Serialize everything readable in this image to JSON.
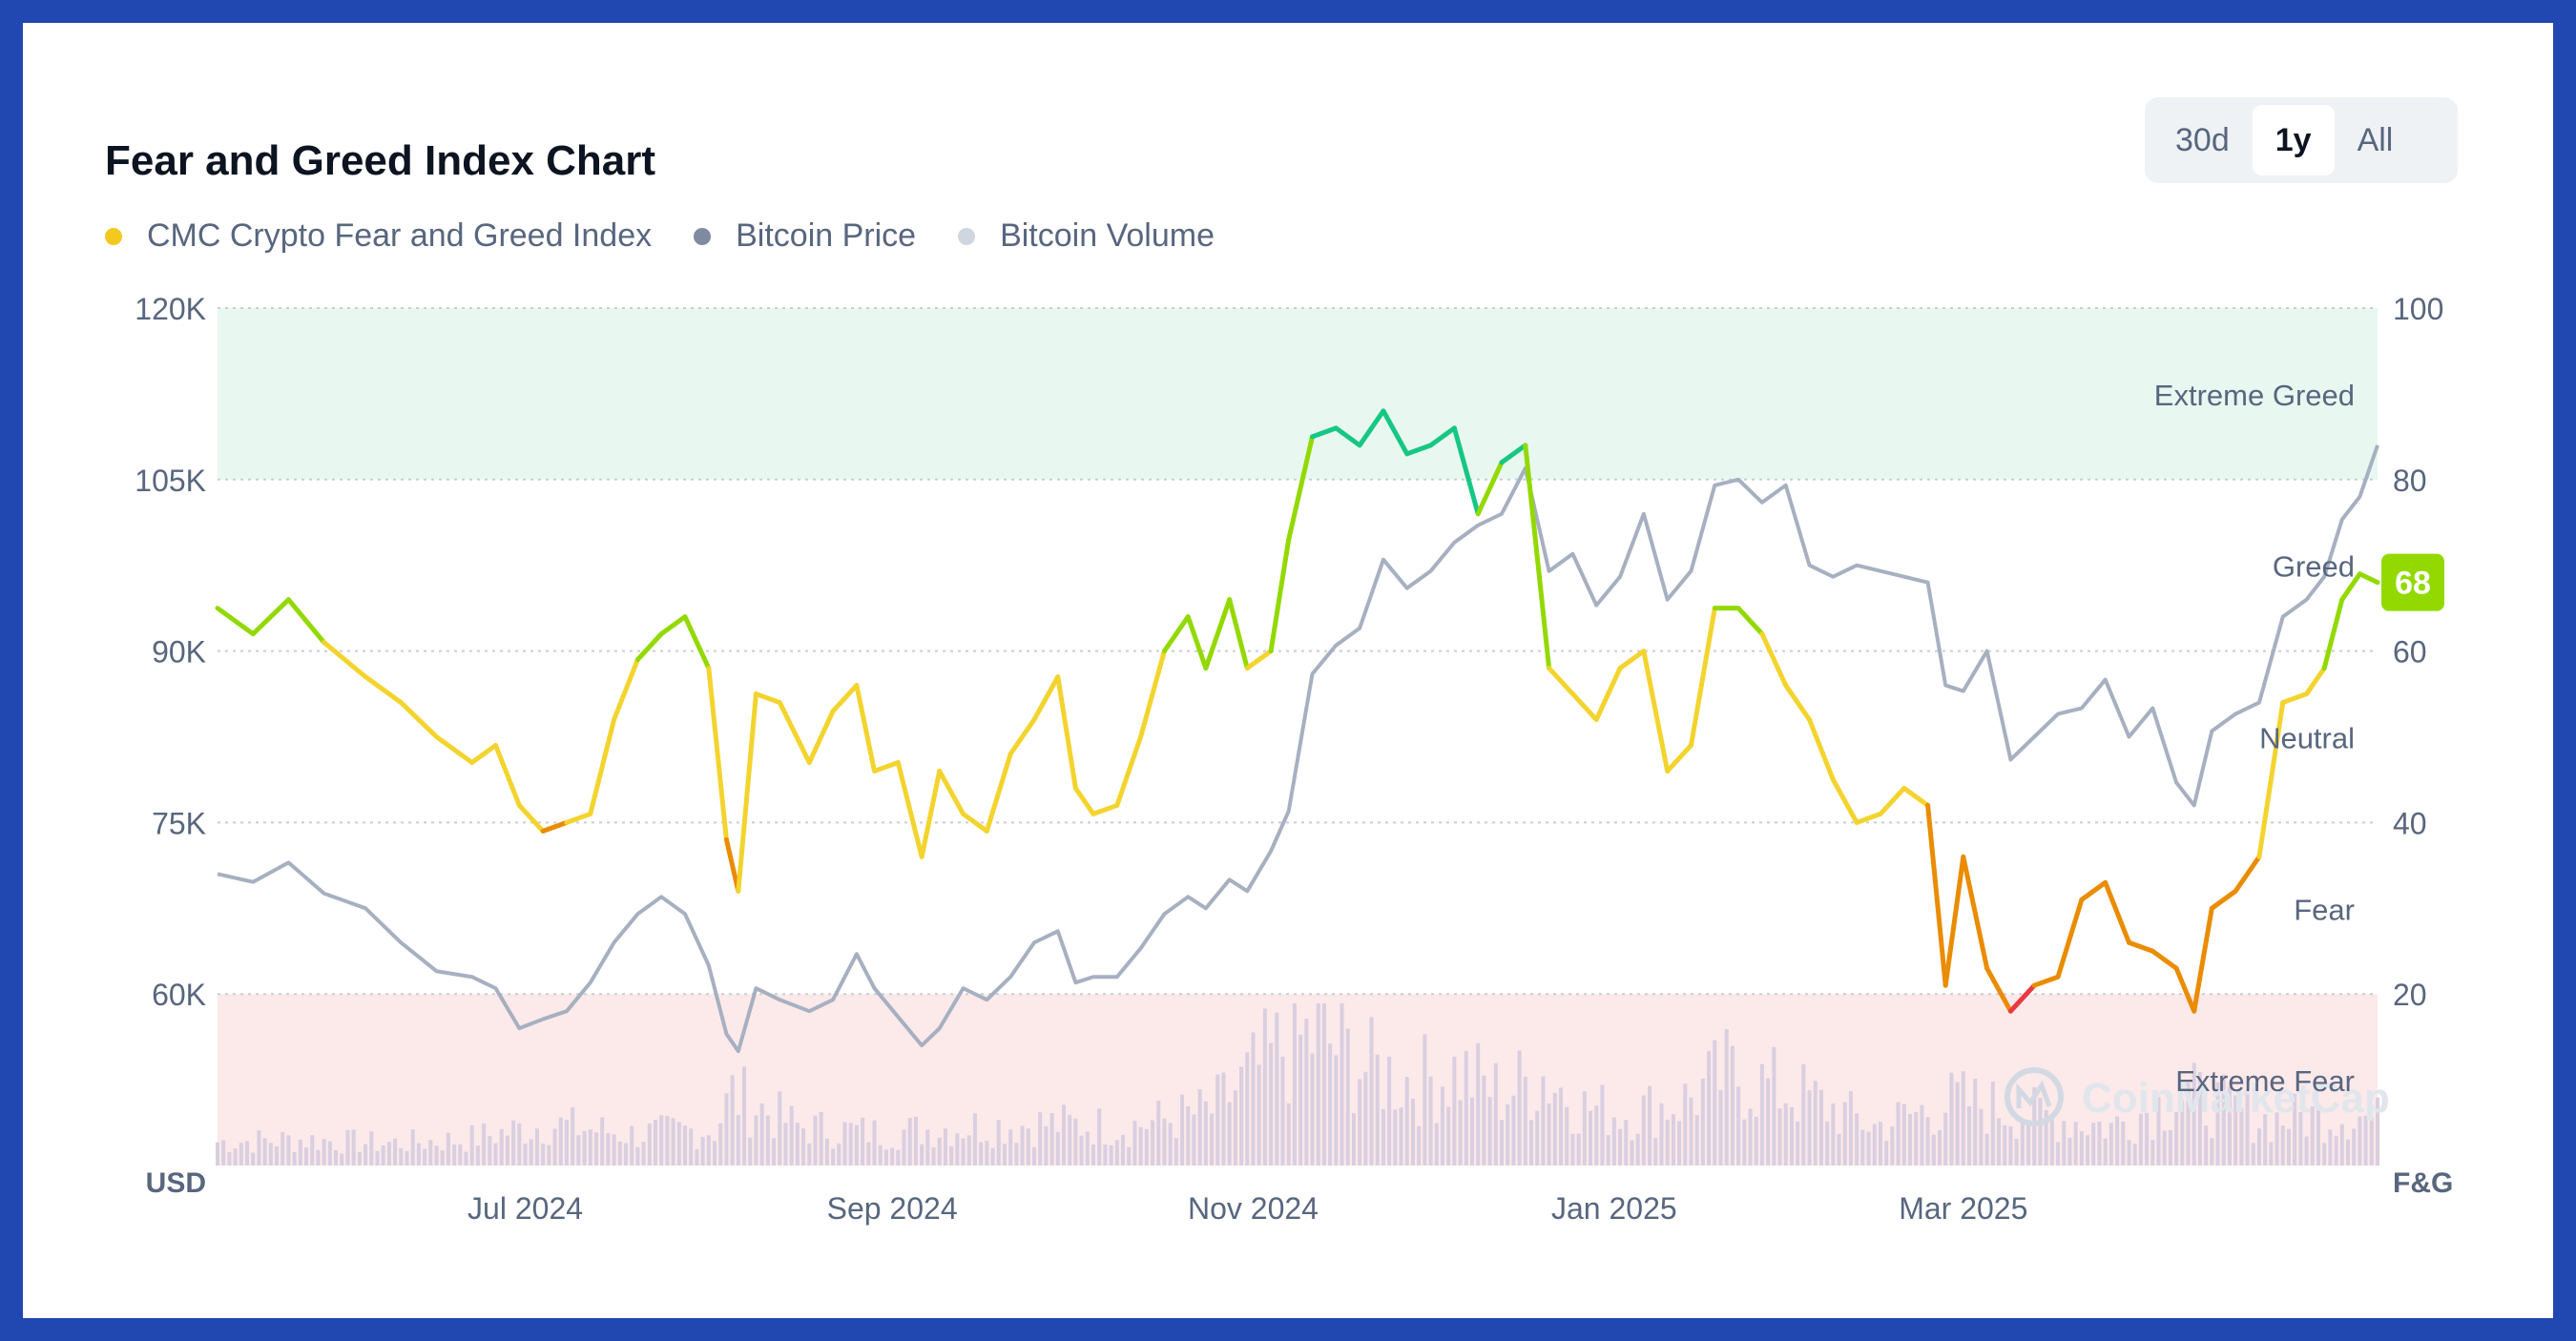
{
  "header": {
    "title": "Fear and Greed Index Chart"
  },
  "legend": [
    {
      "label": "CMC Crypto Fear and Greed Index",
      "color": "#f4c91f"
    },
    {
      "label": "Bitcoin Price",
      "color": "#7e8aa0"
    },
    {
      "label": "Bitcoin Volume",
      "color": "#cfd6e0"
    }
  ],
  "range_selector": {
    "options": [
      "30d",
      "1y",
      "All"
    ],
    "active": "1y"
  },
  "watermark": "CoinMarketCap",
  "chart_data": {
    "type": "line",
    "x_range": [
      "2024-05-10",
      "2025-05-10"
    ],
    "x_ticks": [
      {
        "label": "Jul 2024",
        "date": "2024-07-01"
      },
      {
        "label": "Sep 2024",
        "date": "2024-09-01"
      },
      {
        "label": "Nov 2024",
        "date": "2024-11-01"
      },
      {
        "label": "Jan 2025",
        "date": "2025-01-01"
      },
      {
        "label": "Mar 2025",
        "date": "2025-03-01"
      }
    ],
    "y_left": {
      "label": "USD",
      "min": 45000,
      "max": 120000,
      "ticks": [
        "60K",
        "75K",
        "90K",
        "105K",
        "120K"
      ],
      "tick_values": [
        60000,
        75000,
        90000,
        105000,
        120000
      ]
    },
    "y_right": {
      "label": "F&G",
      "min": 0,
      "max": 100,
      "ticks": [
        20,
        40,
        60,
        80,
        100
      ]
    },
    "zones": [
      {
        "label": "Extreme Greed",
        "from": 80,
        "to": 100,
        "color": "#e8f8f0"
      },
      {
        "label": "Greed",
        "from": 60,
        "to": 80,
        "color": ""
      },
      {
        "label": "Neutral",
        "from": 40,
        "to": 60,
        "color": ""
      },
      {
        "label": "Fear",
        "from": 20,
        "to": 40,
        "color": ""
      },
      {
        "label": "Extreme Fear",
        "from": 0,
        "to": 20,
        "color": "#fce9ea"
      }
    ],
    "fng_color_scale": [
      {
        "min": 0,
        "max": 20,
        "color": "#ea3943"
      },
      {
        "min": 20,
        "max": 40,
        "color": "#ea8c00"
      },
      {
        "min": 40,
        "max": 60,
        "color": "#f3d42f"
      },
      {
        "min": 60,
        "max": 80,
        "color": "#93d900"
      },
      {
        "min": 80,
        "max": 100,
        "color": "#16c784"
      }
    ],
    "current_value": {
      "value": 68,
      "label": "68",
      "color": "#93d900"
    },
    "series": [
      {
        "name": "CMC Crypto Fear and Greed Index",
        "axis": "right",
        "points": [
          [
            "2024-05-10",
            65
          ],
          [
            "2024-05-16",
            62
          ],
          [
            "2024-05-22",
            66
          ],
          [
            "2024-05-28",
            61
          ],
          [
            "2024-06-04",
            57
          ],
          [
            "2024-06-10",
            54
          ],
          [
            "2024-06-16",
            50
          ],
          [
            "2024-06-22",
            47
          ],
          [
            "2024-06-26",
            49
          ],
          [
            "2024-06-30",
            42
          ],
          [
            "2024-07-04",
            39
          ],
          [
            "2024-07-08",
            40
          ],
          [
            "2024-07-12",
            41
          ],
          [
            "2024-07-16",
            52
          ],
          [
            "2024-07-20",
            59
          ],
          [
            "2024-07-24",
            62
          ],
          [
            "2024-07-28",
            64
          ],
          [
            "2024-08-01",
            58
          ],
          [
            "2024-08-04",
            38
          ],
          [
            "2024-08-06",
            32
          ],
          [
            "2024-08-09",
            55
          ],
          [
            "2024-08-13",
            54
          ],
          [
            "2024-08-18",
            47
          ],
          [
            "2024-08-22",
            53
          ],
          [
            "2024-08-26",
            56
          ],
          [
            "2024-08-29",
            46
          ],
          [
            "2024-09-02",
            47
          ],
          [
            "2024-09-06",
            36
          ],
          [
            "2024-09-09",
            46
          ],
          [
            "2024-09-13",
            41
          ],
          [
            "2024-09-17",
            39
          ],
          [
            "2024-09-21",
            48
          ],
          [
            "2024-09-25",
            52
          ],
          [
            "2024-09-29",
            57
          ],
          [
            "2024-10-02",
            44
          ],
          [
            "2024-10-05",
            41
          ],
          [
            "2024-10-09",
            42
          ],
          [
            "2024-10-13",
            50
          ],
          [
            "2024-10-17",
            60
          ],
          [
            "2024-10-21",
            64
          ],
          [
            "2024-10-24",
            58
          ],
          [
            "2024-10-28",
            66
          ],
          [
            "2024-10-31",
            58
          ],
          [
            "2024-11-04",
            60
          ],
          [
            "2024-11-07",
            73
          ],
          [
            "2024-11-11",
            85
          ],
          [
            "2024-11-15",
            86
          ],
          [
            "2024-11-19",
            84
          ],
          [
            "2024-11-23",
            88
          ],
          [
            "2024-11-27",
            83
          ],
          [
            "2024-12-01",
            84
          ],
          [
            "2024-12-05",
            86
          ],
          [
            "2024-12-09",
            76
          ],
          [
            "2024-12-13",
            82
          ],
          [
            "2024-12-17",
            84
          ],
          [
            "2024-12-21",
            58
          ],
          [
            "2024-12-25",
            55
          ],
          [
            "2024-12-29",
            52
          ],
          [
            "2025-01-02",
            58
          ],
          [
            "2025-01-06",
            60
          ],
          [
            "2025-01-10",
            46
          ],
          [
            "2025-01-14",
            49
          ],
          [
            "2025-01-18",
            65
          ],
          [
            "2025-01-22",
            65
          ],
          [
            "2025-01-26",
            62
          ],
          [
            "2025-01-30",
            56
          ],
          [
            "2025-02-03",
            52
          ],
          [
            "2025-02-07",
            45
          ],
          [
            "2025-02-11",
            40
          ],
          [
            "2025-02-15",
            41
          ],
          [
            "2025-02-19",
            44
          ],
          [
            "2025-02-23",
            42
          ],
          [
            "2025-02-26",
            21
          ],
          [
            "2025-03-01",
            36
          ],
          [
            "2025-03-05",
            23
          ],
          [
            "2025-03-09",
            18
          ],
          [
            "2025-03-13",
            21
          ],
          [
            "2025-03-17",
            22
          ],
          [
            "2025-03-21",
            31
          ],
          [
            "2025-03-25",
            33
          ],
          [
            "2025-03-29",
            26
          ],
          [
            "2025-04-02",
            25
          ],
          [
            "2025-04-06",
            23
          ],
          [
            "2025-04-09",
            18
          ],
          [
            "2025-04-12",
            30
          ],
          [
            "2025-04-16",
            32
          ],
          [
            "2025-04-20",
            36
          ],
          [
            "2025-04-24",
            54
          ],
          [
            "2025-04-28",
            55
          ],
          [
            "2025-05-01",
            58
          ],
          [
            "2025-05-04",
            66
          ],
          [
            "2025-05-07",
            69
          ],
          [
            "2025-05-10",
            68
          ]
        ]
      },
      {
        "name": "Bitcoin Price",
        "axis": "left",
        "points": [
          [
            "2024-05-10",
            70500
          ],
          [
            "2024-05-16",
            69800
          ],
          [
            "2024-05-22",
            71500
          ],
          [
            "2024-05-28",
            68800
          ],
          [
            "2024-06-04",
            67500
          ],
          [
            "2024-06-10",
            64500
          ],
          [
            "2024-06-16",
            62000
          ],
          [
            "2024-06-22",
            61500
          ],
          [
            "2024-06-26",
            60500
          ],
          [
            "2024-06-30",
            57000
          ],
          [
            "2024-07-04",
            57800
          ],
          [
            "2024-07-08",
            58500
          ],
          [
            "2024-07-12",
            61000
          ],
          [
            "2024-07-16",
            64500
          ],
          [
            "2024-07-20",
            67000
          ],
          [
            "2024-07-24",
            68500
          ],
          [
            "2024-07-28",
            67000
          ],
          [
            "2024-08-01",
            62500
          ],
          [
            "2024-08-04",
            56500
          ],
          [
            "2024-08-06",
            55000
          ],
          [
            "2024-08-09",
            60500
          ],
          [
            "2024-08-13",
            59500
          ],
          [
            "2024-08-18",
            58500
          ],
          [
            "2024-08-22",
            59500
          ],
          [
            "2024-08-26",
            63500
          ],
          [
            "2024-08-29",
            60500
          ],
          [
            "2024-09-02",
            58000
          ],
          [
            "2024-09-06",
            55500
          ],
          [
            "2024-09-09",
            57000
          ],
          [
            "2024-09-13",
            60500
          ],
          [
            "2024-09-17",
            59500
          ],
          [
            "2024-09-21",
            61500
          ],
          [
            "2024-09-25",
            64500
          ],
          [
            "2024-09-29",
            65500
          ],
          [
            "2024-10-02",
            61000
          ],
          [
            "2024-10-05",
            61500
          ],
          [
            "2024-10-09",
            61500
          ],
          [
            "2024-10-13",
            64000
          ],
          [
            "2024-10-17",
            67000
          ],
          [
            "2024-10-21",
            68500
          ],
          [
            "2024-10-24",
            67500
          ],
          [
            "2024-10-28",
            70000
          ],
          [
            "2024-10-31",
            69000
          ],
          [
            "2024-11-04",
            72500
          ],
          [
            "2024-11-07",
            76000
          ],
          [
            "2024-11-11",
            88000
          ],
          [
            "2024-11-15",
            90500
          ],
          [
            "2024-11-19",
            92000
          ],
          [
            "2024-11-23",
            98000
          ],
          [
            "2024-11-27",
            95500
          ],
          [
            "2024-12-01",
            97000
          ],
          [
            "2024-12-05",
            99500
          ],
          [
            "2024-12-09",
            101000
          ],
          [
            "2024-12-13",
            102000
          ],
          [
            "2024-12-17",
            106000
          ],
          [
            "2024-12-21",
            97000
          ],
          [
            "2024-12-25",
            98500
          ],
          [
            "2024-12-29",
            94000
          ],
          [
            "2025-01-02",
            96500
          ],
          [
            "2025-01-06",
            102000
          ],
          [
            "2025-01-10",
            94500
          ],
          [
            "2025-01-14",
            97000
          ],
          [
            "2025-01-18",
            104500
          ],
          [
            "2025-01-22",
            105000
          ],
          [
            "2025-01-26",
            103000
          ],
          [
            "2025-01-30",
            104500
          ],
          [
            "2025-02-03",
            97500
          ],
          [
            "2025-02-07",
            96500
          ],
          [
            "2025-02-11",
            97500
          ],
          [
            "2025-02-15",
            97000
          ],
          [
            "2025-02-19",
            96500
          ],
          [
            "2025-02-23",
            96000
          ],
          [
            "2025-02-26",
            87000
          ],
          [
            "2025-03-01",
            86500
          ],
          [
            "2025-03-05",
            90000
          ],
          [
            "2025-03-09",
            80500
          ],
          [
            "2025-03-13",
            82500
          ],
          [
            "2025-03-17",
            84500
          ],
          [
            "2025-03-21",
            85000
          ],
          [
            "2025-03-25",
            87500
          ],
          [
            "2025-03-29",
            82500
          ],
          [
            "2025-04-02",
            85000
          ],
          [
            "2025-04-06",
            78500
          ],
          [
            "2025-04-09",
            76500
          ],
          [
            "2025-04-12",
            83000
          ],
          [
            "2025-04-16",
            84500
          ],
          [
            "2025-04-20",
            85500
          ],
          [
            "2025-04-24",
            93000
          ],
          [
            "2025-04-28",
            94500
          ],
          [
            "2025-05-01",
            96500
          ],
          [
            "2025-05-04",
            101500
          ],
          [
            "2025-05-07",
            103500
          ],
          [
            "2025-05-10",
            108000
          ]
        ]
      },
      {
        "name": "Bitcoin Volume",
        "axis": "hidden",
        "style": "bars",
        "points": [
          [
            "2024-05-10",
            0.18
          ],
          [
            "2024-05-24",
            0.2
          ],
          [
            "2024-06-07",
            0.17
          ],
          [
            "2024-06-21",
            0.2
          ],
          [
            "2024-07-05",
            0.32
          ],
          [
            "2024-07-19",
            0.24
          ],
          [
            "2024-08-02",
            0.28
          ],
          [
            "2024-08-05",
            0.55
          ],
          [
            "2024-08-16",
            0.3
          ],
          [
            "2024-08-30",
            0.25
          ],
          [
            "2024-09-13",
            0.3
          ],
          [
            "2024-09-27",
            0.32
          ],
          [
            "2024-10-11",
            0.3
          ],
          [
            "2024-10-25",
            0.42
          ],
          [
            "2024-11-06",
            0.9
          ],
          [
            "2024-11-12",
            1.0
          ],
          [
            "2024-11-20",
            0.75
          ],
          [
            "2024-11-28",
            0.65
          ],
          [
            "2024-12-06",
            0.72
          ],
          [
            "2024-12-13",
            0.55
          ],
          [
            "2024-12-20",
            0.7
          ],
          [
            "2024-12-27",
            0.45
          ],
          [
            "2025-01-03",
            0.4
          ],
          [
            "2025-01-13",
            0.5
          ],
          [
            "2025-01-20",
            0.7
          ],
          [
            "2025-02-01",
            0.55
          ],
          [
            "2025-02-14",
            0.3
          ],
          [
            "2025-02-28",
            0.5
          ],
          [
            "2025-03-12",
            0.4
          ],
          [
            "2025-03-26",
            0.3
          ],
          [
            "2025-04-07",
            0.55
          ],
          [
            "2025-04-21",
            0.35
          ],
          [
            "2025-05-05",
            0.4
          ],
          [
            "2025-05-10",
            0.35
          ]
        ]
      }
    ]
  }
}
